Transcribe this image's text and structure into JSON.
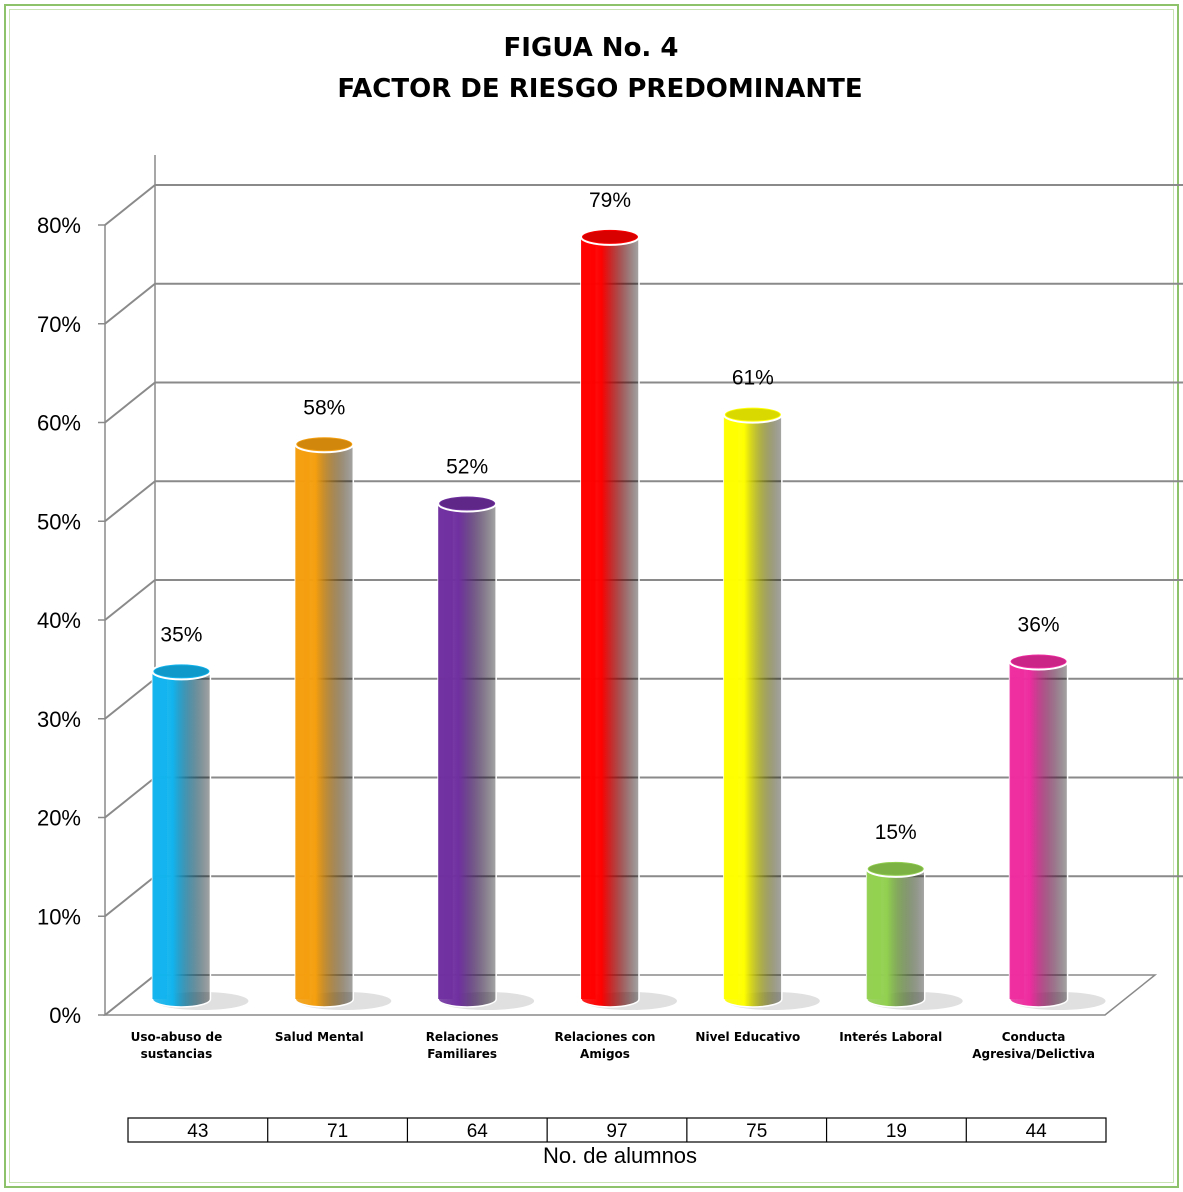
{
  "chart_data": {
    "type": "bar",
    "title_line1": "FIGUA No. 4",
    "title_line2": "FACTOR DE RIESGO PREDOMINANTE",
    "categories": [
      [
        "Uso-abuso de",
        "sustancias"
      ],
      [
        "Salud Mental"
      ],
      [
        "Relaciones",
        "Familiares"
      ],
      [
        "Relaciones con",
        "Amigos"
      ],
      [
        "Nivel Educativo"
      ],
      [
        "Interés Laboral"
      ],
      [
        "Conducta",
        "Agresiva/Delictiva"
      ]
    ],
    "values": [
      35,
      58,
      52,
      79,
      61,
      15,
      36
    ],
    "value_labels": [
      "35%",
      "58%",
      "52%",
      "79%",
      "61%",
      "15%",
      "36%"
    ],
    "colors": [
      "#12b4ee",
      "#f59f0e",
      "#7030a0",
      "#ff0000",
      "#ffff00",
      "#92d050",
      "#ee2c9f"
    ],
    "ylim": [
      0,
      80
    ],
    "yticks": [
      "0%",
      "10%",
      "20%",
      "30%",
      "40%",
      "50%",
      "60%",
      "70%",
      "80%"
    ],
    "grid": true,
    "table": {
      "values": [
        "43",
        "71",
        "64",
        "97",
        "75",
        "19",
        "44"
      ],
      "label": "No. de alumnos"
    }
  }
}
